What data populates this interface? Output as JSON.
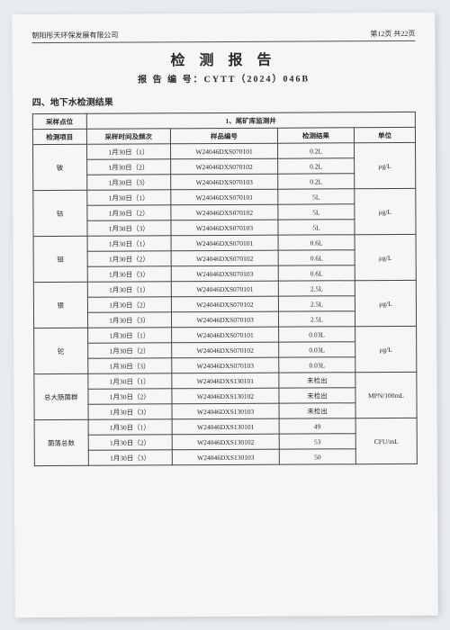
{
  "header": {
    "company": "朝阳彤天环保发展有限公司",
    "page_info": "第12页  共22页"
  },
  "title": "检 测 报 告",
  "report_no_label": "报 告 编 号：",
  "report_no": "CYTT（2024）046B",
  "section": "四、地下水检测结果",
  "table": {
    "loc_label": "采样点位",
    "loc_value": "1、尾矿库监测井",
    "columns": [
      "检测项目",
      "采样时间及频次",
      "样品编号",
      "检测结果",
      "单位"
    ],
    "groups": [
      {
        "param": "铍",
        "unit": "μg/L",
        "rows": [
          {
            "time": "1月30日（1）",
            "code": "W24046DXS070101",
            "result": "0.2L"
          },
          {
            "time": "1月30日（2）",
            "code": "W24046DXS070102",
            "result": "0.2L"
          },
          {
            "time": "1月30日（3）",
            "code": "W24046DXS070103",
            "result": "0.2L"
          }
        ]
      },
      {
        "param": "钴",
        "unit": "μg/L",
        "rows": [
          {
            "time": "1月30日（1）",
            "code": "W24046DXS070101",
            "result": "5L"
          },
          {
            "time": "1月30日（2）",
            "code": "W24046DXS070102",
            "result": "5L"
          },
          {
            "time": "1月30日（3）",
            "code": "W24046DXS070103",
            "result": "5L"
          }
        ]
      },
      {
        "param": "钼",
        "unit": "μg/L",
        "rows": [
          {
            "time": "1月30日（1）",
            "code": "W24046DXS070101",
            "result": "0.6L"
          },
          {
            "time": "1月30日（2）",
            "code": "W24046DXS070102",
            "result": "0.6L"
          },
          {
            "time": "1月30日（3）",
            "code": "W24046DXS070103",
            "result": "0.6L"
          }
        ]
      },
      {
        "param": "银",
        "unit": "μg/L",
        "rows": [
          {
            "time": "1月30日（1）",
            "code": "W24046DXS070101",
            "result": "2.5L"
          },
          {
            "time": "1月30日（2）",
            "code": "W24046DXS070102",
            "result": "2.5L"
          },
          {
            "time": "1月30日（3）",
            "code": "W24046DXS070103",
            "result": "2.5L"
          }
        ]
      },
      {
        "param": "铊",
        "unit": "μg/L",
        "rows": [
          {
            "time": "1月30日（1）",
            "code": "W24046DXS070101",
            "result": "0.03L"
          },
          {
            "time": "1月30日（2）",
            "code": "W24046DXS070102",
            "result": "0.03L"
          },
          {
            "time": "1月30日（3）",
            "code": "W24046DXS070103",
            "result": "0.03L"
          }
        ]
      },
      {
        "param": "总大肠菌群",
        "unit": "MPN/100mL",
        "rows": [
          {
            "time": "1月30日（1）",
            "code": "W24046DXS130101",
            "result": "未检出"
          },
          {
            "time": "1月30日（2）",
            "code": "W24046DXS130102",
            "result": "未检出"
          },
          {
            "time": "1月30日（3）",
            "code": "W24046DXS130103",
            "result": "未检出"
          }
        ]
      },
      {
        "param": "菌落总数",
        "unit": "CFU/mL",
        "rows": [
          {
            "time": "1月30日（1）",
            "code": "W24046DXS130101",
            "result": "49"
          },
          {
            "time": "1月30日（2）",
            "code": "W24046DXS130102",
            "result": "53"
          },
          {
            "time": "1月30日（3）",
            "code": "W24046DXS130103",
            "result": "50"
          }
        ]
      }
    ]
  }
}
